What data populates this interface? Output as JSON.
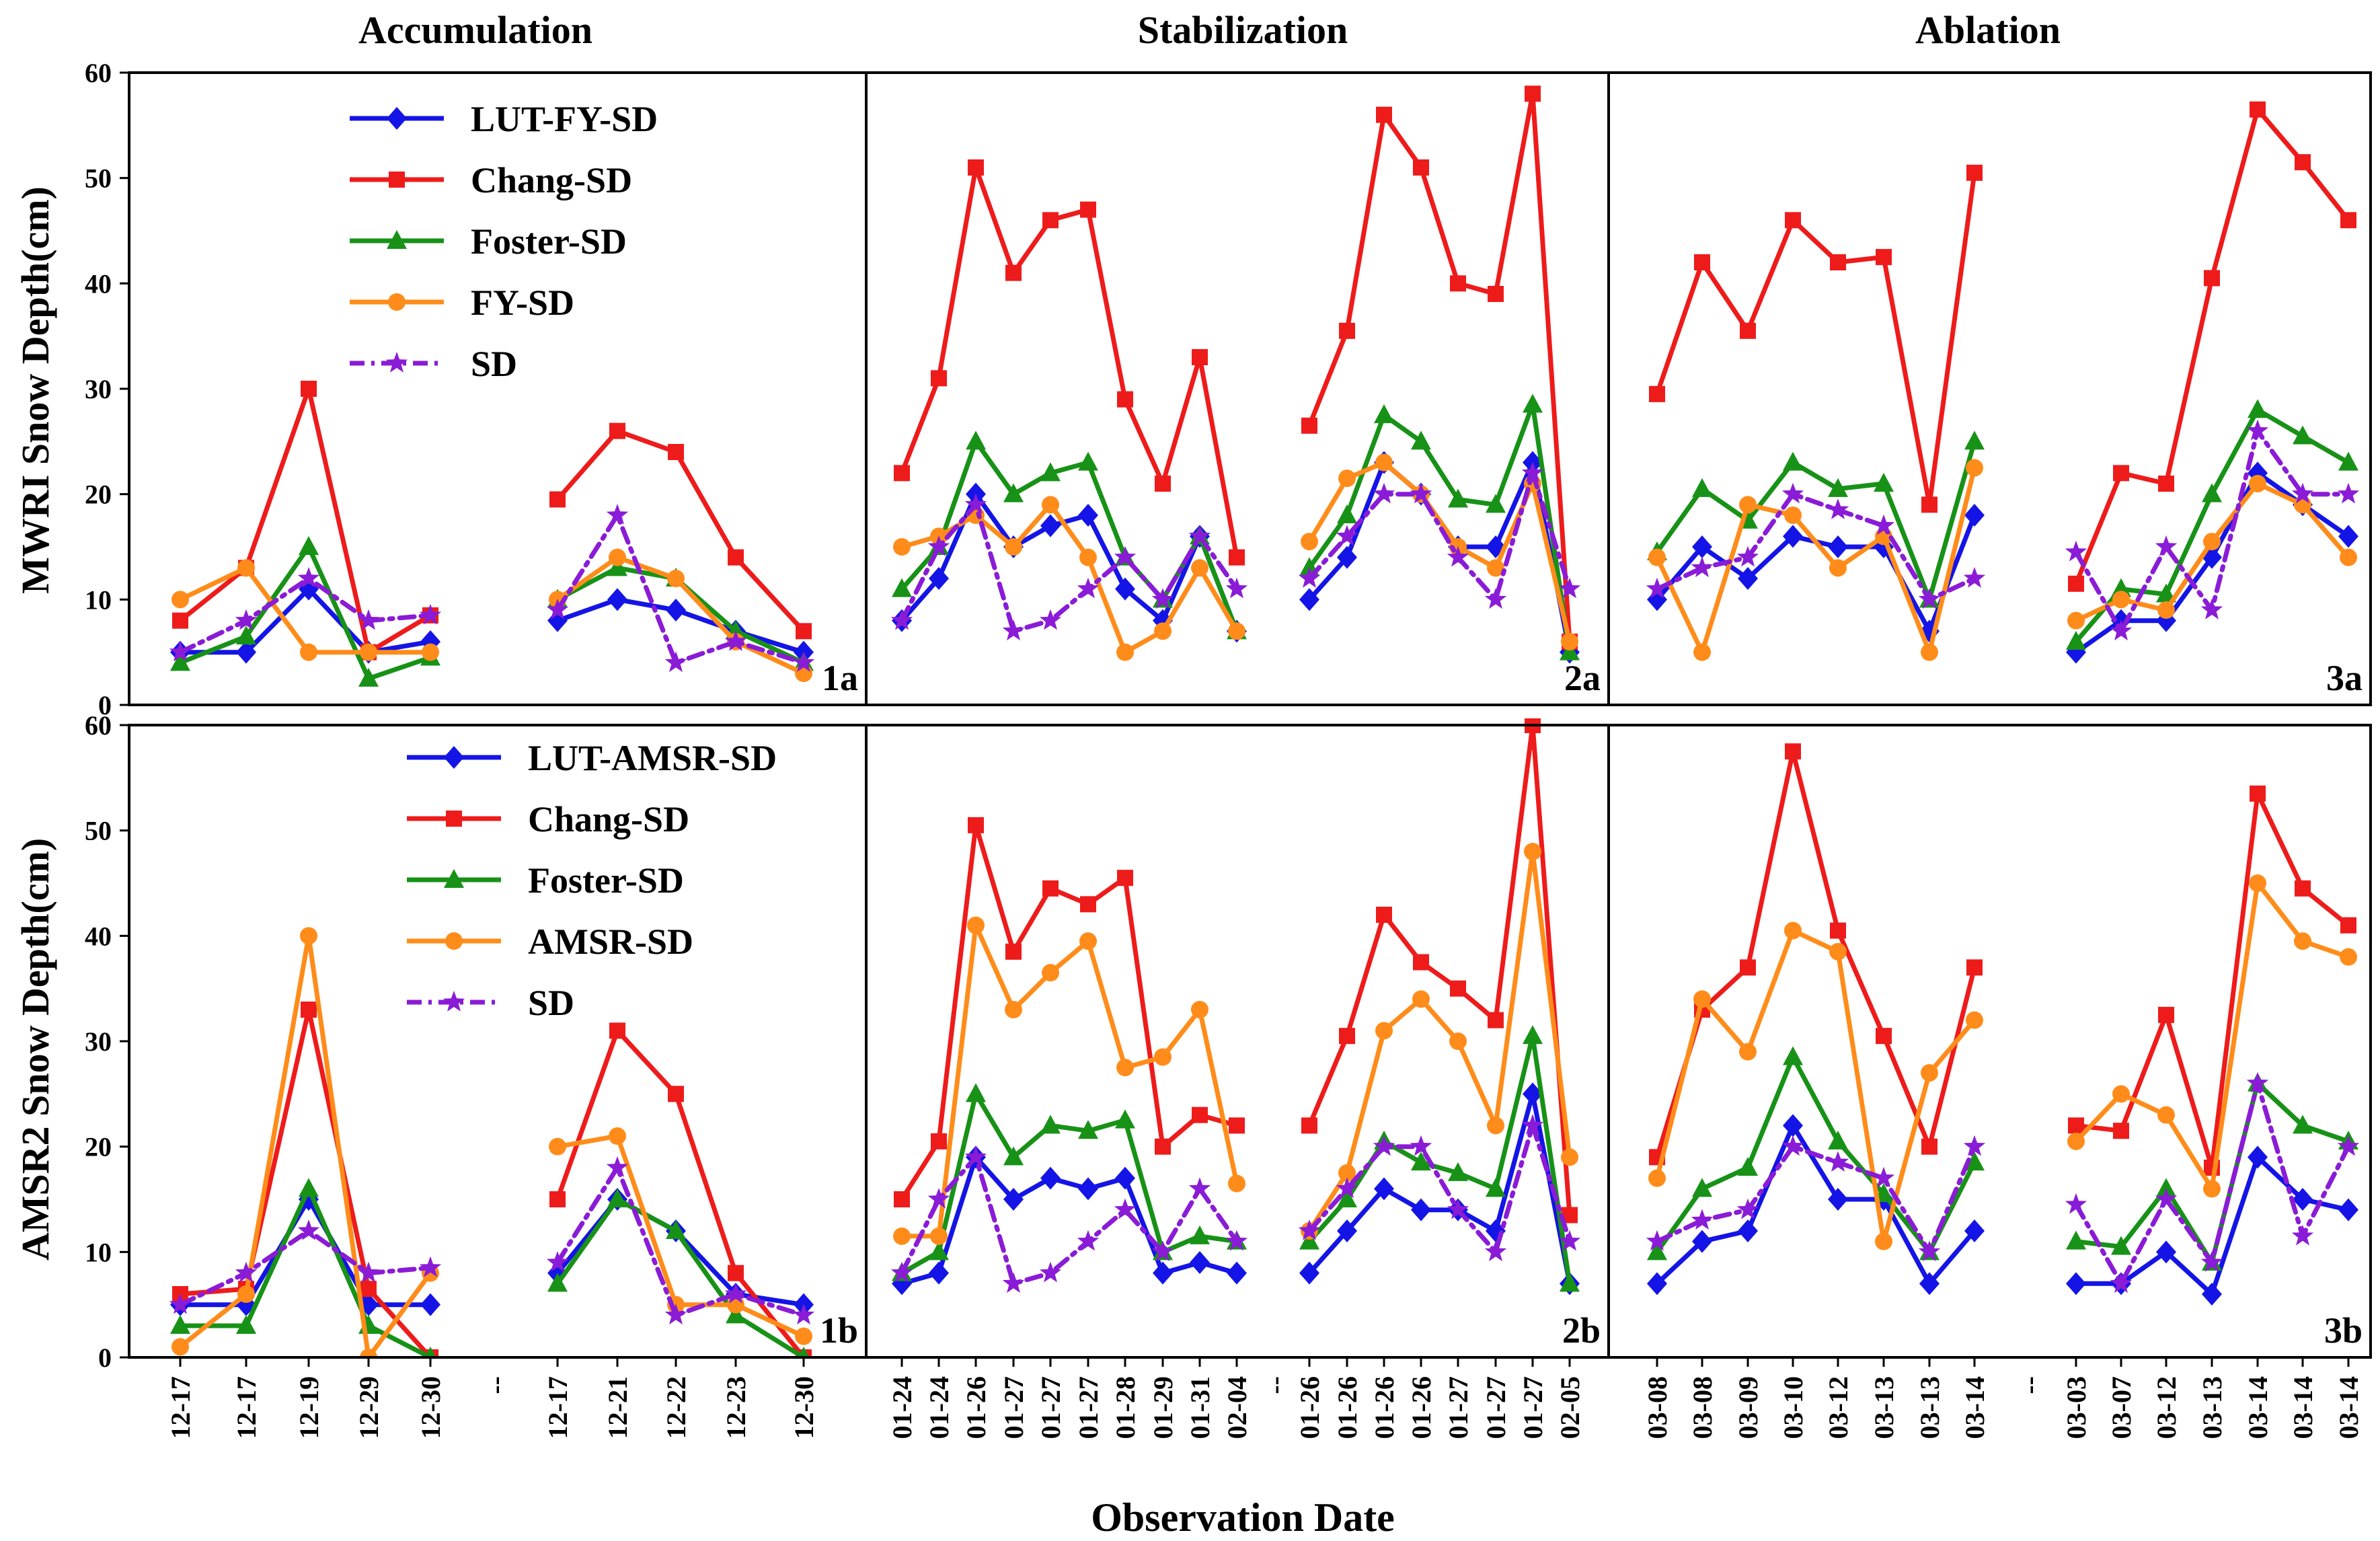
{
  "chart_data": {
    "type": "line",
    "column_titles": [
      "Accumulation",
      "Stabilization",
      "Ablation"
    ],
    "xlabel": "Observation Date",
    "ylabels": [
      "MWRI Snow Depth(cm)",
      "AMSR2 Snow Depth(cm)"
    ],
    "ylim": [
      0,
      60
    ],
    "yticks": [
      0,
      10,
      20,
      30,
      40,
      50,
      60
    ],
    "gap_label": "--",
    "legends": [
      [
        "LUT-FY-SD",
        "Chang-SD",
        "Foster-SD",
        "FY-SD",
        "SD"
      ],
      [
        "LUT-AMSR-SD",
        "Chang-SD",
        "Foster-SD",
        "AMSR-SD",
        "SD"
      ]
    ],
    "series_colors": [
      "#1414e6",
      "#ee1b1b",
      "#179217",
      "#ff8c1a",
      "#8a1bd6"
    ],
    "columns": [
      {
        "segments": [
          [
            "12-17",
            "12-17",
            "12-19",
            "12-29",
            "12-30"
          ],
          [
            "12-17",
            "12-21",
            "12-22",
            "12-23",
            "12-30"
          ]
        ]
      },
      {
        "segments": [
          [
            "01-24",
            "01-24",
            "01-26",
            "01-27",
            "01-27",
            "01-27",
            "01-28",
            "01-29",
            "01-31",
            "02-04"
          ],
          [
            "01-26",
            "01-26",
            "01-26",
            "01-26",
            "01-27",
            "01-27",
            "01-27",
            "02-05"
          ]
        ]
      },
      {
        "segments": [
          [
            "03-08",
            "03-08",
            "03-09",
            "03-10",
            "03-12",
            "03-13",
            "03-13",
            "03-14"
          ],
          [
            "03-03",
            "03-07",
            "03-12",
            "03-13",
            "03-14",
            "03-14",
            "03-14"
          ]
        ]
      }
    ],
    "panels": [
      {
        "label": "1a",
        "row": 0,
        "col": 0,
        "series": [
          [
            [
              5,
              5,
              11,
              5,
              6
            ],
            [
              8,
              10,
              9,
              7,
              5
            ]
          ],
          [
            [
              8,
              13,
              30,
              5,
              8.5
            ],
            [
              19.5,
              26,
              24,
              14,
              7
            ]
          ],
          [
            [
              4,
              6.5,
              15,
              2.5,
              4.5
            ],
            [
              10,
              13,
              12,
              7,
              4
            ]
          ],
          [
            [
              10,
              13,
              5,
              5,
              5
            ],
            [
              10,
              14,
              12,
              6,
              3
            ]
          ],
          [
            [
              5,
              8,
              12,
              8,
              8.5
            ],
            [
              9,
              18,
              4,
              6,
              4
            ]
          ]
        ]
      },
      {
        "label": "2a",
        "row": 0,
        "col": 1,
        "series": [
          [
            [
              8,
              12,
              20,
              15,
              17,
              18,
              11,
              8,
              16,
              7
            ],
            [
              10,
              14,
              23,
              20,
              15,
              15,
              23,
              5
            ]
          ],
          [
            [
              22,
              31,
              51,
              41,
              46,
              47,
              29,
              21,
              33,
              14
            ],
            [
              26.5,
              35.5,
              56,
              51,
              40,
              39,
              58,
              6
            ]
          ],
          [
            [
              11,
              15,
              25,
              20,
              22,
              23,
              14,
              10,
              16,
              7
            ],
            [
              13,
              18,
              27.5,
              25,
              19.5,
              19,
              28.5,
              5
            ]
          ],
          [
            [
              15,
              16,
              18,
              15,
              19,
              14,
              5,
              7,
              13,
              7
            ],
            [
              15.5,
              21.5,
              23,
              20,
              15,
              13,
              21,
              6
            ]
          ],
          [
            [
              8,
              15,
              19,
              7,
              8,
              11,
              14,
              10,
              16,
              11
            ],
            [
              12,
              16,
              20,
              20,
              14,
              10,
              22,
              11
            ]
          ]
        ]
      },
      {
        "label": "3a",
        "row": 0,
        "col": 2,
        "series": [
          [
            [
              10,
              15,
              12,
              16,
              15,
              15,
              7,
              18
            ],
            [
              5,
              8,
              8,
              14,
              22,
              19,
              16
            ]
          ],
          [
            [
              29.5,
              42,
              35.5,
              46,
              42,
              42.5,
              19,
              50.5
            ],
            [
              11.5,
              22,
              21,
              40.5,
              56.5,
              51.5,
              46
            ]
          ],
          [
            [
              14.5,
              20.5,
              17.5,
              23,
              20.5,
              21,
              10,
              25
            ],
            [
              6,
              11,
              10.5,
              20,
              28,
              25.5,
              23
            ]
          ],
          [
            [
              14,
              5,
              19,
              18,
              13,
              16,
              5,
              22.5
            ],
            [
              8,
              10,
              9,
              15.5,
              21,
              19,
              14
            ]
          ],
          [
            [
              11,
              13,
              14,
              20,
              18.5,
              17,
              10,
              12
            ],
            [
              14.5,
              7,
              15,
              9,
              26,
              20,
              20
            ]
          ]
        ]
      },
      {
        "label": "1b",
        "row": 1,
        "col": 0,
        "series": [
          [
            [
              5,
              5,
              15,
              5,
              5
            ],
            [
              8,
              15,
              12,
              6,
              5
            ]
          ],
          [
            [
              6,
              6.5,
              33,
              6.5,
              0
            ],
            [
              15,
              31,
              25,
              8,
              0
            ]
          ],
          [
            [
              3,
              3,
              16,
              3,
              0
            ],
            [
              7,
              15,
              12,
              4,
              0
            ]
          ],
          [
            [
              1,
              6,
              40,
              0,
              8
            ],
            [
              20,
              21,
              5,
              5,
              2
            ]
          ],
          [
            [
              5,
              8,
              12,
              8,
              8.5
            ],
            [
              9,
              18,
              4,
              6,
              4
            ]
          ]
        ]
      },
      {
        "label": "2b",
        "row": 1,
        "col": 1,
        "series": [
          [
            [
              7,
              8,
              19,
              15,
              17,
              16,
              17,
              8,
              9,
              8
            ],
            [
              8,
              12,
              16,
              14,
              14,
              12,
              25,
              7
            ]
          ],
          [
            [
              15,
              20.5,
              50.5,
              38.5,
              44.5,
              43,
              45.5,
              20,
              23,
              22
            ],
            [
              22,
              30.5,
              42,
              37.5,
              35,
              32,
              60,
              13.5
            ]
          ],
          [
            [
              8,
              10,
              25,
              19,
              22,
              21.5,
              22.5,
              10,
              11.5,
              11
            ],
            [
              11,
              15,
              20.5,
              18.5,
              17.5,
              16,
              30.5,
              7
            ]
          ],
          [
            [
              11.5,
              11.5,
              41,
              33,
              36.5,
              39.5,
              27.5,
              28.5,
              33,
              16.5
            ],
            [
              12,
              17.5,
              31,
              34,
              30,
              22,
              48,
              19
            ]
          ],
          [
            [
              8,
              15,
              19,
              7,
              8,
              11,
              14,
              10,
              16,
              11
            ],
            [
              12,
              16,
              20,
              20,
              14,
              10,
              22,
              11
            ]
          ]
        ]
      },
      {
        "label": "3b",
        "row": 1,
        "col": 2,
        "series": [
          [
            [
              7,
              11,
              12,
              22,
              15,
              15,
              7,
              12
            ],
            [
              7,
              7,
              10,
              6,
              19,
              15,
              14
            ]
          ],
          [
            [
              19,
              33,
              37,
              57.5,
              40.5,
              30.5,
              20,
              37
            ],
            [
              22,
              21.5,
              32.5,
              18,
              53.5,
              44.5,
              41
            ]
          ],
          [
            [
              10,
              16,
              18,
              28.5,
              20.5,
              15.5,
              10,
              18.5
            ],
            [
              11,
              10.5,
              16,
              9,
              26,
              22,
              20.5
            ]
          ],
          [
            [
              17,
              34,
              29,
              40.5,
              38.5,
              11,
              27,
              32
            ],
            [
              20.5,
              25,
              23,
              16,
              45,
              39.5,
              38
            ]
          ],
          [
            [
              11,
              13,
              14,
              20,
              18.5,
              17,
              10,
              20
            ],
            [
              14.5,
              7,
              15,
              9,
              26,
              11.5,
              20
            ]
          ]
        ]
      }
    ]
  }
}
